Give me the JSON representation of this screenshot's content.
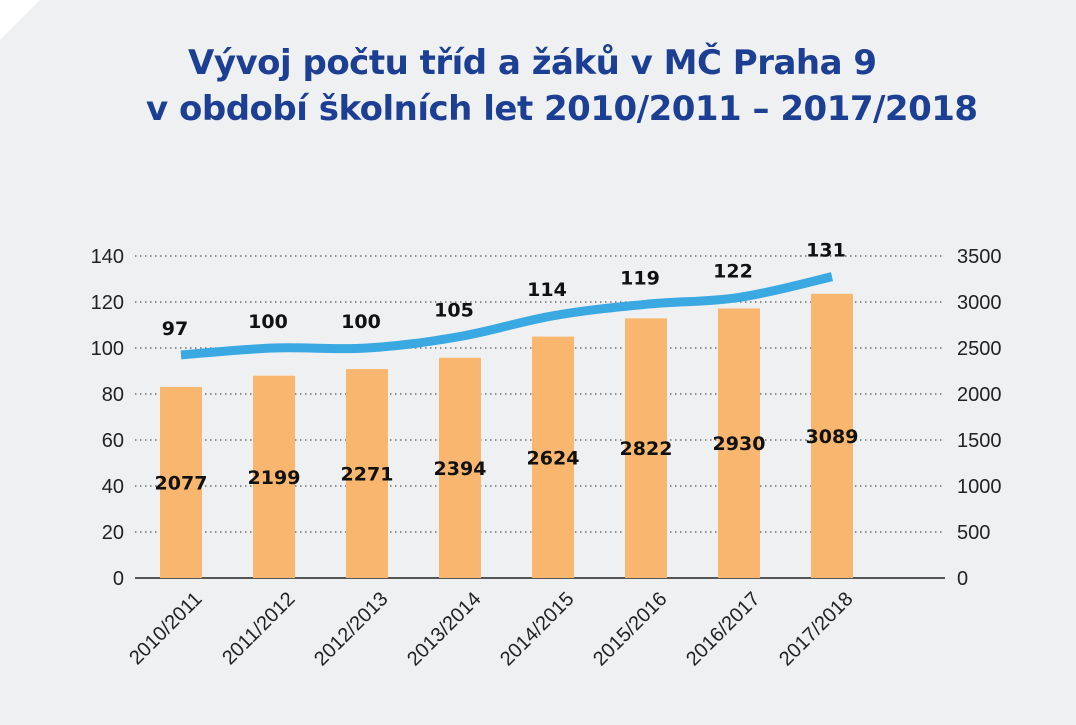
{
  "colors": {
    "background": "#eff0f2",
    "title": "#1c3f94",
    "bar": "#f8b66e",
    "line": "#3aa8e1",
    "grid": "#555555"
  },
  "chart_data": {
    "type": "bar",
    "title_line1": "Vývoj počtu tříd a žáků v MČ Praha 9",
    "title_line2": "v období školních let 2010/2011 – 2017/2018",
    "categories": [
      "2010/2011",
      "2011/2012",
      "2012/2013",
      "2013/2014",
      "2014/2015",
      "2015/2016",
      "2016/2017",
      "2017/2018"
    ],
    "series": [
      {
        "type": "bar",
        "axis": "right",
        "values": [
          2077,
          2199,
          2271,
          2394,
          2624,
          2822,
          2930,
          3089
        ]
      },
      {
        "type": "line",
        "axis": "left",
        "values": [
          97,
          100,
          100,
          105,
          114,
          119,
          122,
          131
        ]
      }
    ],
    "left_axis": {
      "min": 0,
      "max": 140,
      "ticks": [
        "0",
        "20",
        "40",
        "60",
        "80",
        "100",
        "120",
        "140"
      ]
    },
    "right_axis": {
      "min": 0,
      "max": 3500,
      "ticks": [
        "0",
        "500",
        "1000",
        "1500",
        "2000",
        "2500",
        "3000",
        "3500"
      ]
    },
    "grid": true,
    "legend": "none"
  }
}
